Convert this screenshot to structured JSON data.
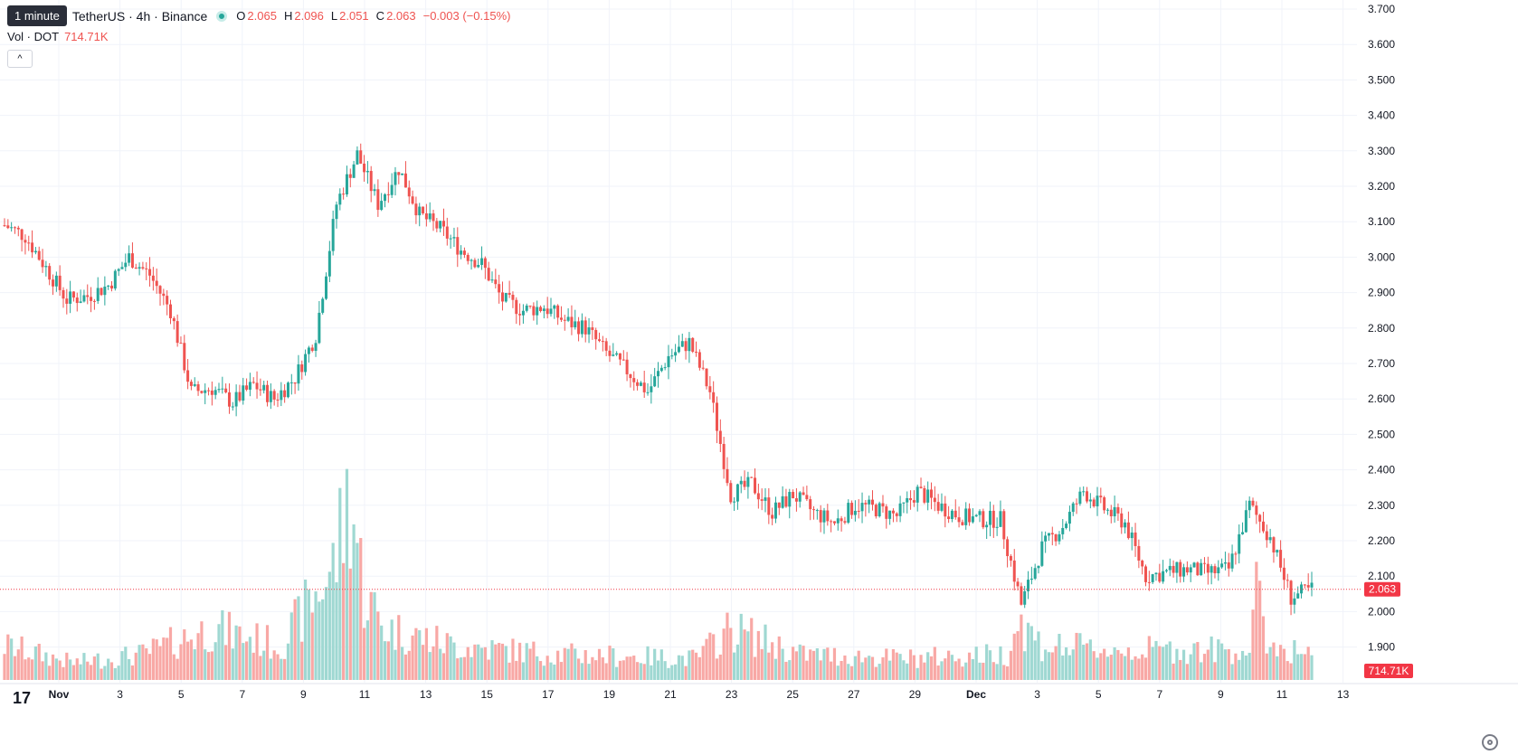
{
  "legend": {
    "interval_tooltip": "1 minute",
    "symbol": "TetherUS · 4h · Binance",
    "ohlc": [
      {
        "key": "O",
        "value": "2.065"
      },
      {
        "key": "H",
        "value": "2.096"
      },
      {
        "key": "L",
        "value": "2.051"
      },
      {
        "key": "C",
        "value": "2.063"
      },
      {
        "key": "",
        "value": "−0.003 (−0.15%)"
      }
    ],
    "volume_label": "Vol · DOT",
    "volume_value": "714.71K"
  },
  "price_badge": "2.063",
  "volume_badge": "714.71K",
  "colors": {
    "up": "#26a69a",
    "down": "#ef5350",
    "up_vol": "#9fd8d2",
    "down_vol": "#f8a8a5",
    "grid": "#f0f3fa",
    "badge": "#f23645"
  },
  "icons": {
    "logo": "tradingview-logo-icon",
    "settings": "settings-gear-icon",
    "collapse": "chevron-up-icon"
  },
  "chart_data": {
    "type": "candlestick",
    "title": "TetherUS · 4h · Binance",
    "y_ticks": [
      "3.700",
      "3.600",
      "3.500",
      "3.400",
      "3.300",
      "3.200",
      "3.100",
      "3.000",
      "2.900",
      "2.800",
      "2.700",
      "2.600",
      "2.500",
      "2.400",
      "2.300",
      "2.200",
      "2.100",
      "2.000",
      "1.900"
    ],
    "ylim": [
      1.86,
      3.72
    ],
    "x_ticks": [
      "Nov",
      "3",
      "5",
      "7",
      "9",
      "11",
      "13",
      "15",
      "17",
      "19",
      "21",
      "23",
      "25",
      "27",
      "29",
      "Dec",
      "3",
      "5",
      "7",
      "9",
      "11",
      "13"
    ],
    "last_price": 2.063,
    "close_path": [
      [
        0,
        3.09
      ],
      [
        6,
        3.06
      ],
      [
        12,
        2.97
      ],
      [
        18,
        2.88
      ],
      [
        24,
        2.89
      ],
      [
        30,
        2.92
      ],
      [
        36,
        3.0
      ],
      [
        42,
        2.95
      ],
      [
        48,
        2.85
      ],
      [
        54,
        2.62
      ],
      [
        60,
        2.63
      ],
      [
        66,
        2.59
      ],
      [
        72,
        2.64
      ],
      [
        78,
        2.6
      ],
      [
        84,
        2.66
      ],
      [
        90,
        2.78
      ],
      [
        96,
        3.15
      ],
      [
        102,
        3.29
      ],
      [
        108,
        3.15
      ],
      [
        114,
        3.25
      ],
      [
        120,
        3.12
      ],
      [
        126,
        3.08
      ],
      [
        132,
        3.02
      ],
      [
        138,
        2.98
      ],
      [
        144,
        2.88
      ],
      [
        150,
        2.85
      ],
      [
        156,
        2.86
      ],
      [
        162,
        2.82
      ],
      [
        168,
        2.8
      ],
      [
        174,
        2.73
      ],
      [
        180,
        2.68
      ],
      [
        186,
        2.62
      ],
      [
        192,
        2.72
      ],
      [
        198,
        2.76
      ],
      [
        204,
        2.62
      ],
      [
        210,
        2.33
      ],
      [
        216,
        2.36
      ],
      [
        222,
        2.28
      ],
      [
        228,
        2.33
      ],
      [
        234,
        2.28
      ],
      [
        240,
        2.25
      ],
      [
        246,
        2.3
      ],
      [
        252,
        2.29
      ],
      [
        258,
        2.27
      ],
      [
        264,
        2.34
      ],
      [
        270,
        2.3
      ],
      [
        276,
        2.27
      ],
      [
        282,
        2.26
      ],
      [
        288,
        2.26
      ],
      [
        294,
        2.02
      ],
      [
        300,
        2.18
      ],
      [
        306,
        2.24
      ],
      [
        312,
        2.34
      ],
      [
        318,
        2.29
      ],
      [
        324,
        2.25
      ],
      [
        330,
        2.1
      ],
      [
        336,
        2.11
      ],
      [
        342,
        2.12
      ],
      [
        348,
        2.11
      ],
      [
        354,
        2.12
      ],
      [
        360,
        2.3
      ],
      [
        366,
        2.21
      ],
      [
        372,
        2.04
      ],
      [
        378,
        2.063
      ]
    ],
    "volume_path": [
      [
        0,
        40
      ],
      [
        20,
        20
      ],
      [
        40,
        30
      ],
      [
        60,
        60
      ],
      [
        80,
        40
      ],
      [
        95,
        130
      ],
      [
        100,
        220
      ],
      [
        104,
        100
      ],
      [
        110,
        60
      ],
      [
        130,
        40
      ],
      [
        160,
        30
      ],
      [
        200,
        25
      ],
      [
        210,
        60
      ],
      [
        230,
        30
      ],
      [
        260,
        25
      ],
      [
        290,
        30
      ],
      [
        293,
        70
      ],
      [
        300,
        40
      ],
      [
        320,
        35
      ],
      [
        360,
        35
      ],
      [
        362,
        95
      ],
      [
        366,
        40
      ],
      [
        378,
        30
      ]
    ],
    "candle_count": 379
  }
}
